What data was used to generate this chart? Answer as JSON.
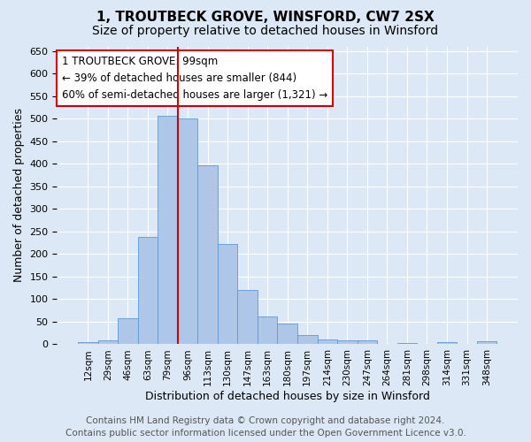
{
  "title": "1, TROUTBECK GROVE, WINSFORD, CW7 2SX",
  "subtitle": "Size of property relative to detached houses in Winsford",
  "xlabel": "Distribution of detached houses by size in Winsford",
  "ylabel": "Number of detached properties",
  "bar_labels": [
    "12sqm",
    "29sqm",
    "46sqm",
    "63sqm",
    "79sqm",
    "96sqm",
    "113sqm",
    "130sqm",
    "147sqm",
    "163sqm",
    "180sqm",
    "197sqm",
    "214sqm",
    "230sqm",
    "247sqm",
    "264sqm",
    "281sqm",
    "298sqm",
    "314sqm",
    "331sqm",
    "348sqm"
  ],
  "bar_heights": [
    5,
    8,
    58,
    238,
    507,
    500,
    396,
    222,
    120,
    62,
    46,
    20,
    11,
    9,
    8,
    0,
    3,
    0,
    5,
    0,
    6
  ],
  "bar_color": "#aec6e8",
  "bar_edge_color": "#5b9bd5",
  "vline_color": "#cc0000",
  "vline_bar_index": 5,
  "ylim": [
    0,
    660
  ],
  "yticks": [
    0,
    50,
    100,
    150,
    200,
    250,
    300,
    350,
    400,
    450,
    500,
    550,
    600,
    650
  ],
  "annotation_box_text": "1 TROUTBECK GROVE: 99sqm\n← 39% of detached houses are smaller (844)\n60% of semi-detached houses are larger (1,321) →",
  "annotation_box_color": "#cc0000",
  "footer1": "Contains HM Land Registry data © Crown copyright and database right 2024.",
  "footer2": "Contains public sector information licensed under the Open Government Licence v3.0.",
  "bg_color": "#dce8f5",
  "grid_color": "#ffffff",
  "title_fontsize": 11,
  "subtitle_fontsize": 10,
  "footer_fontsize": 7.5,
  "ylabel_fontsize": 9,
  "xlabel_fontsize": 9
}
